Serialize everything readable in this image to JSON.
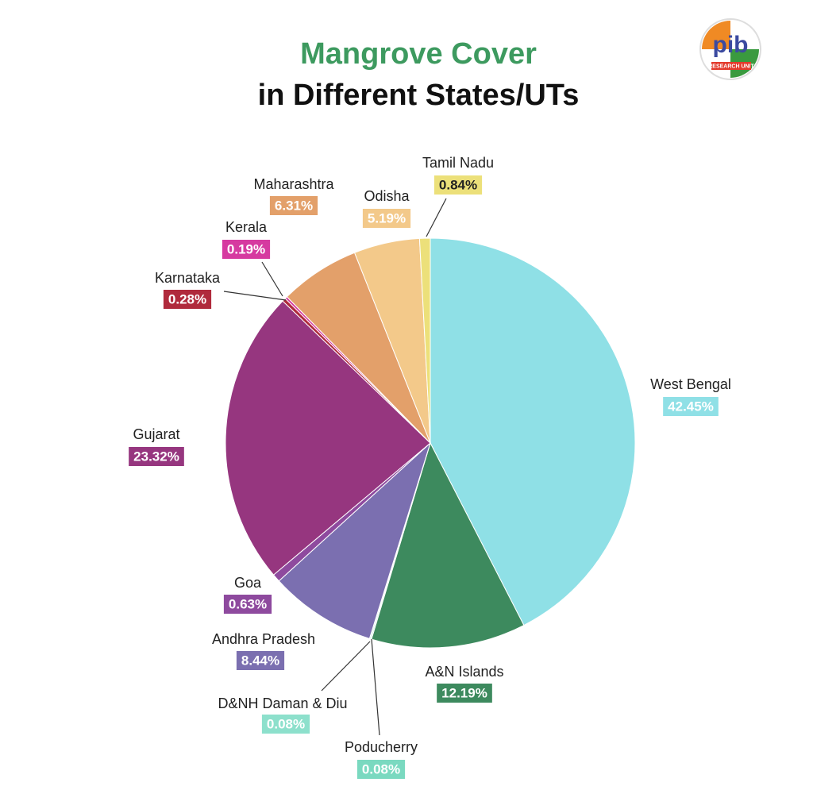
{
  "chart_data": {
    "type": "pie",
    "title": "Mangrove Cover",
    "subtitle": "in Different States/UTs",
    "logo": {
      "text": "pib",
      "subtext": "RESEARCH UNIT"
    },
    "categories": [
      "West Bengal",
      "A&N Islands",
      "Poducherry",
      "D&NH Daman & Diu",
      "Andhra Pradesh",
      "Goa",
      "Gujarat",
      "Karnataka",
      "Kerala",
      "Maharashtra",
      "Odisha",
      "Tamil Nadu"
    ],
    "values": [
      42.45,
      12.19,
      0.08,
      0.08,
      8.44,
      0.63,
      23.32,
      0.28,
      0.19,
      6.31,
      5.19,
      0.84
    ],
    "value_labels": [
      "42.45%",
      "12.19%",
      "0.08%",
      "0.08%",
      "8.44%",
      "0.63%",
      "23.32%",
      "0.28%",
      "0.19%",
      "6.31%",
      "5.19%",
      "0.84%"
    ],
    "colors": [
      "#8fe0e6",
      "#3d8a5e",
      "#7ad9c0",
      "#8de0cc",
      "#7b6fb0",
      "#8e4a9e",
      "#96367f",
      "#b02a3c",
      "#d63aa0",
      "#e3a06a",
      "#f3c98a",
      "#ece07a"
    ]
  }
}
